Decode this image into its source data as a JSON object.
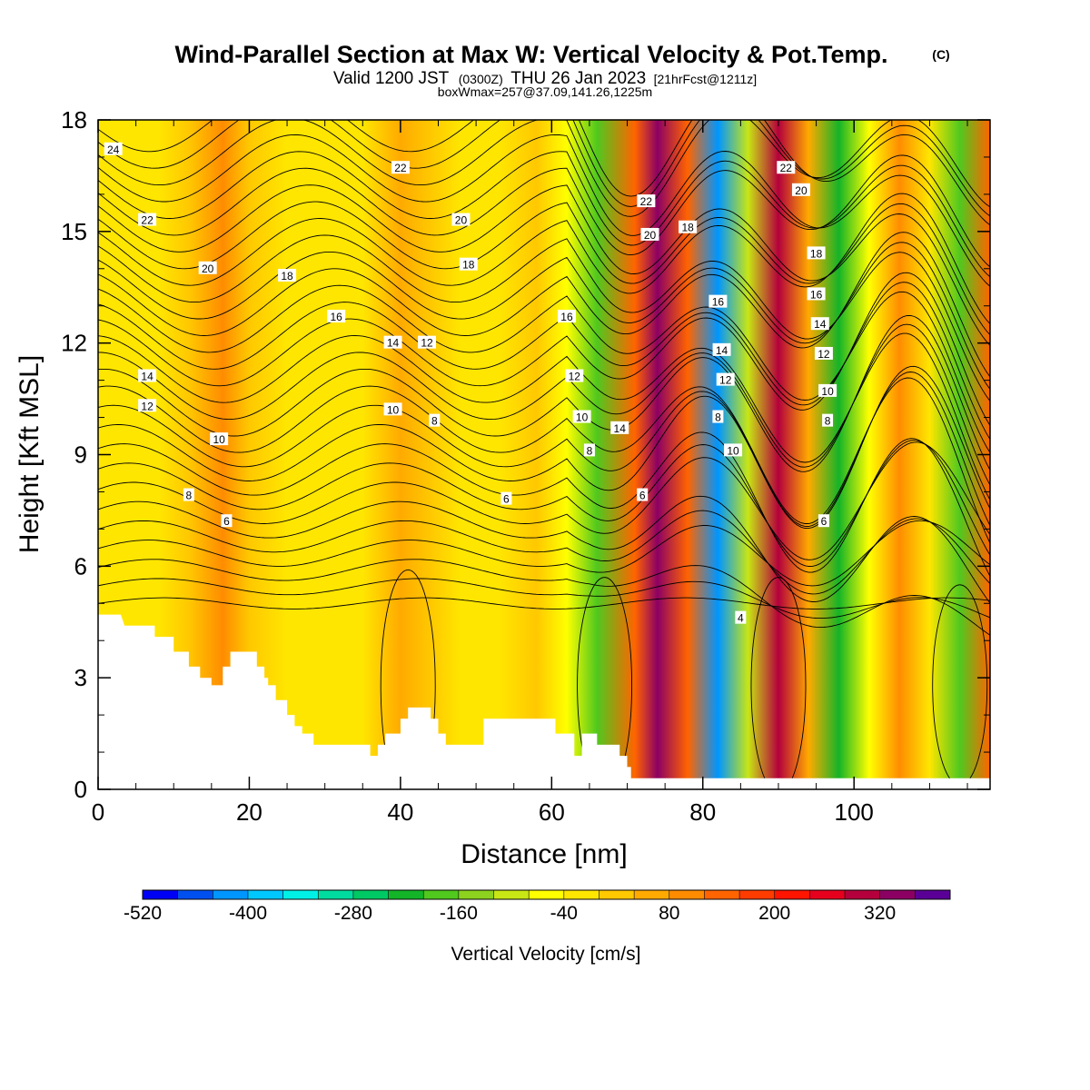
{
  "title": {
    "main": "Wind-Parallel Section at Max W: Vertical Velocity & Pot.Temp.",
    "main_mark": "(C)",
    "valid_a": "Valid 1200 JST",
    "valid_b": "(0300Z)",
    "valid_c": "THU 26 Jan 2023",
    "valid_d": "[21hrFcst@1211z]",
    "box": "boxWmax=257@37.09,141.26,1225m"
  },
  "chart_data": {
    "type": "heatmap",
    "xlabel": "Distance [nm]",
    "ylabel": "Height [Kft MSL]",
    "xlim": [
      0,
      118
    ],
    "ylim": [
      0,
      18
    ],
    "x_ticks": [
      0,
      20,
      40,
      60,
      80,
      100
    ],
    "y_ticks": [
      0,
      3,
      6,
      9,
      12,
      15,
      18
    ],
    "x_ticks_text": [
      "0",
      "20",
      "40",
      "60",
      "80",
      "100"
    ],
    "y_ticks_text": [
      "0",
      "3",
      "6",
      "9",
      "12",
      "15",
      "18"
    ],
    "colorbar": {
      "title": "Vertical Velocity [cm/s]",
      "colors": [
        "#0000f5",
        "#0050f0",
        "#0096ff",
        "#00c8ff",
        "#00f0e6",
        "#00dca0",
        "#00c864",
        "#14b428",
        "#50c81e",
        "#8cd21e",
        "#c8e614",
        "#ffff00",
        "#ffe600",
        "#ffc800",
        "#ffaa00",
        "#ff8c00",
        "#ff6400",
        "#ff3c00",
        "#ff1400",
        "#e6001e",
        "#b4003c",
        "#8c0064",
        "#5a0096"
      ],
      "tick_labels": [
        "-520",
        "-400",
        "-280",
        "-160",
        "-40",
        "80",
        "200",
        "320"
      ],
      "tick_values": [
        -520,
        -400,
        -280,
        -160,
        -40,
        80,
        200,
        320
      ],
      "range": [
        -520,
        400
      ]
    },
    "shaded_field": "vertical_velocity_cm_per_s",
    "bands": [
      {
        "x": 3,
        "v": -30
      },
      {
        "x": 8,
        "v": -20
      },
      {
        "x": 12,
        "v": 20
      },
      {
        "x": 16.5,
        "v": 110
      },
      {
        "x": 20,
        "v": 20
      },
      {
        "x": 25,
        "v": -10
      },
      {
        "x": 30,
        "v": -40
      },
      {
        "x": 35,
        "v": -20
      },
      {
        "x": 40,
        "v": 60
      },
      {
        "x": 44,
        "v": 20
      },
      {
        "x": 48,
        "v": -30
      },
      {
        "x": 53,
        "v": -10
      },
      {
        "x": 58,
        "v": 10
      },
      {
        "x": 62,
        "v": -80
      },
      {
        "x": 66,
        "v": -200
      },
      {
        "x": 71,
        "v": 150
      },
      {
        "x": 74,
        "v": 340
      },
      {
        "x": 78,
        "v": 120
      },
      {
        "x": 82,
        "v": -420
      },
      {
        "x": 86,
        "v": -100
      },
      {
        "x": 90,
        "v": 300
      },
      {
        "x": 94,
        "v": 40
      },
      {
        "x": 98,
        "v": -240
      },
      {
        "x": 102,
        "v": -60
      },
      {
        "x": 106,
        "v": 90
      },
      {
        "x": 110,
        "v": -30
      },
      {
        "x": 114,
        "v": -180
      },
      {
        "x": 118,
        "v": 140
      }
    ],
    "terrain_kft": [
      [
        0,
        4.7
      ],
      [
        3,
        4.7
      ],
      [
        3.5,
        4.4
      ],
      [
        7.5,
        4.4
      ],
      [
        7.5,
        4.1
      ],
      [
        10,
        4.1
      ],
      [
        10,
        3.7
      ],
      [
        12,
        3.7
      ],
      [
        12,
        3.3
      ],
      [
        13.5,
        3.3
      ],
      [
        13.5,
        3.0
      ],
      [
        15,
        3.0
      ],
      [
        15,
        2.8
      ],
      [
        16.5,
        2.8
      ],
      [
        16.5,
        3.3
      ],
      [
        17.5,
        3.3
      ],
      [
        17.5,
        3.7
      ],
      [
        21,
        3.7
      ],
      [
        21,
        3.3
      ],
      [
        22,
        3.3
      ],
      [
        22,
        3.0
      ],
      [
        22.5,
        3.0
      ],
      [
        22.5,
        2.8
      ],
      [
        23.5,
        2.8
      ],
      [
        23.5,
        2.4
      ],
      [
        25,
        2.4
      ],
      [
        25,
        2.0
      ],
      [
        26,
        2.0
      ],
      [
        26,
        1.7
      ],
      [
        27,
        1.7
      ],
      [
        27,
        1.5
      ],
      [
        28.5,
        1.5
      ],
      [
        28.5,
        1.2
      ],
      [
        36,
        1.2
      ],
      [
        36,
        0.9
      ],
      [
        37,
        0.9
      ],
      [
        37,
        1.2
      ],
      [
        38,
        1.2
      ],
      [
        38,
        1.5
      ],
      [
        40,
        1.5
      ],
      [
        40,
        1.9
      ],
      [
        41,
        1.9
      ],
      [
        41,
        2.2
      ],
      [
        44,
        2.2
      ],
      [
        44,
        1.9
      ],
      [
        45,
        1.9
      ],
      [
        45,
        1.5
      ],
      [
        46,
        1.5
      ],
      [
        46,
        1.2
      ],
      [
        51,
        1.2
      ],
      [
        51,
        1.9
      ],
      [
        60.5,
        1.9
      ],
      [
        60.5,
        1.5
      ],
      [
        63,
        1.5
      ],
      [
        63,
        0.9
      ],
      [
        64,
        0.9
      ],
      [
        64,
        1.5
      ],
      [
        66,
        1.5
      ],
      [
        66,
        1.2
      ],
      [
        69,
        1.2
      ],
      [
        69,
        0.9
      ],
      [
        70,
        0.9
      ],
      [
        70,
        0.6
      ],
      [
        70.5,
        0.6
      ],
      [
        70.5,
        0.3
      ],
      [
        74,
        0.3
      ],
      [
        118,
        0.3
      ]
    ],
    "theta_contours_c": [
      4,
      6,
      8,
      10,
      12,
      14,
      16,
      18,
      20,
      22,
      24
    ],
    "theta_labels": [
      {
        "t": "24",
        "x": 2,
        "y": 17.2
      },
      {
        "t": "22",
        "x": 6.5,
        "y": 15.3
      },
      {
        "t": "20",
        "x": 14.5,
        "y": 14.0
      },
      {
        "t": "18",
        "x": 25,
        "y": 13.8
      },
      {
        "t": "16",
        "x": 31.5,
        "y": 12.7
      },
      {
        "t": "14",
        "x": 39,
        "y": 12.0
      },
      {
        "t": "12",
        "x": 43.5,
        "y": 12.0
      },
      {
        "t": "14",
        "x": 6.5,
        "y": 11.1
      },
      {
        "t": "12",
        "x": 6.5,
        "y": 10.3
      },
      {
        "t": "10",
        "x": 39,
        "y": 10.2
      },
      {
        "t": "8",
        "x": 44.5,
        "y": 9.9
      },
      {
        "t": "10",
        "x": 16,
        "y": 9.4
      },
      {
        "t": "8",
        "x": 12,
        "y": 7.9
      },
      {
        "t": "6",
        "x": 17,
        "y": 7.2
      },
      {
        "t": "22",
        "x": 40,
        "y": 16.7
      },
      {
        "t": "20",
        "x": 48,
        "y": 15.3
      },
      {
        "t": "18",
        "x": 49,
        "y": 14.1
      },
      {
        "t": "16",
        "x": 62,
        "y": 12.7
      },
      {
        "t": "12",
        "x": 63,
        "y": 11.1
      },
      {
        "t": "10",
        "x": 64,
        "y": 10.0
      },
      {
        "t": "8",
        "x": 65,
        "y": 9.1
      },
      {
        "t": "14",
        "x": 69,
        "y": 9.7
      },
      {
        "t": "6",
        "x": 54,
        "y": 7.8
      },
      {
        "t": "6",
        "x": 72,
        "y": 7.9
      },
      {
        "t": "22",
        "x": 72.5,
        "y": 15.8
      },
      {
        "t": "20",
        "x": 73,
        "y": 14.9
      },
      {
        "t": "18",
        "x": 78,
        "y": 15.1
      },
      {
        "t": "16",
        "x": 82,
        "y": 13.1
      },
      {
        "t": "14",
        "x": 82.5,
        "y": 11.8
      },
      {
        "t": "12",
        "x": 83,
        "y": 11.0
      },
      {
        "t": "8",
        "x": 82,
        "y": 10.0
      },
      {
        "t": "10",
        "x": 84,
        "y": 9.1
      },
      {
        "t": "4",
        "x": 85,
        "y": 4.6
      },
      {
        "t": "22",
        "x": 91,
        "y": 16.7
      },
      {
        "t": "20",
        "x": 93,
        "y": 16.1
      },
      {
        "t": "18",
        "x": 95,
        "y": 14.4
      },
      {
        "t": "16",
        "x": 95,
        "y": 13.3
      },
      {
        "t": "14",
        "x": 95.5,
        "y": 12.5
      },
      {
        "t": "12",
        "x": 96,
        "y": 11.7
      },
      {
        "t": "10",
        "x": 96.5,
        "y": 10.7
      },
      {
        "t": "8",
        "x": 96.5,
        "y": 9.9
      },
      {
        "t": "6",
        "x": 96,
        "y": 7.2
      }
    ]
  }
}
